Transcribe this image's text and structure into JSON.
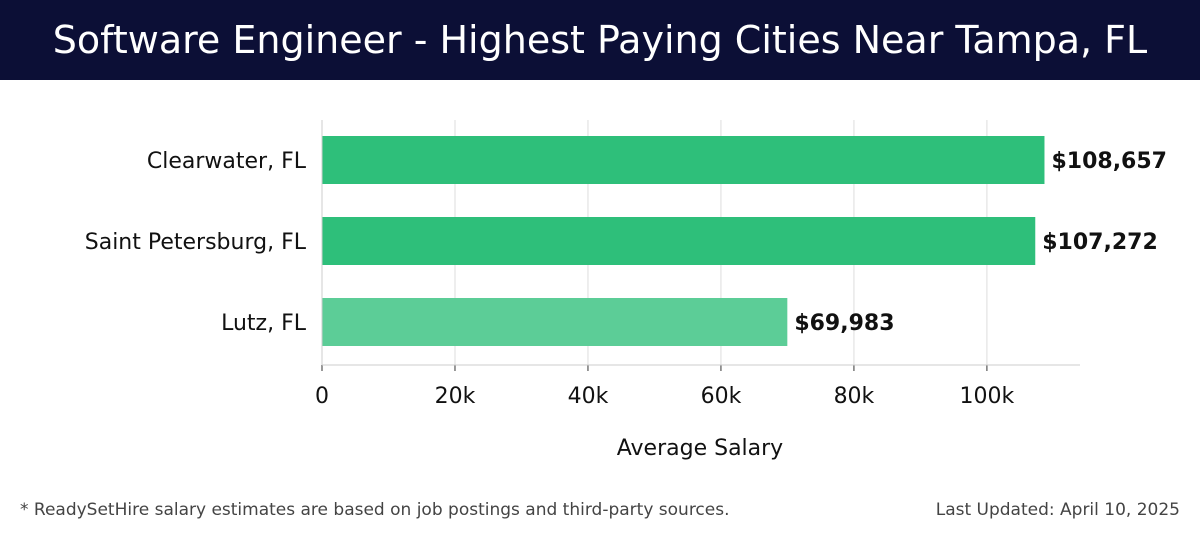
{
  "header": {
    "title": "Software Engineer - Highest Paying Cities Near Tampa, FL",
    "background": "#0c0f36"
  },
  "chart_data": {
    "type": "bar",
    "orientation": "horizontal",
    "title": "Software Engineer - Highest Paying Cities Near Tampa, FL",
    "categories": [
      "Clearwater, FL",
      "Saint Petersburg, FL",
      "Lutz, FL"
    ],
    "values": [
      108657,
      107272,
      69983
    ],
    "value_labels": [
      "$108,657",
      "$107,272",
      "$69,983"
    ],
    "bar_colors": [
      "#2ebf7a",
      "#2ebf7a",
      "#5ccd97"
    ],
    "xlabel": "Average Salary",
    "ylabel": "",
    "xlim": [
      0,
      114000
    ],
    "xticks": [
      0,
      20000,
      40000,
      60000,
      80000,
      100000
    ],
    "xtick_labels": [
      "0",
      "20k",
      "40k",
      "60k",
      "80k",
      "100k"
    ],
    "grid": "vertical"
  },
  "footer": {
    "note": "* ReadySetHire salary estimates are based on job postings and third-party sources.",
    "updated": "Last Updated: April 10, 2025"
  }
}
